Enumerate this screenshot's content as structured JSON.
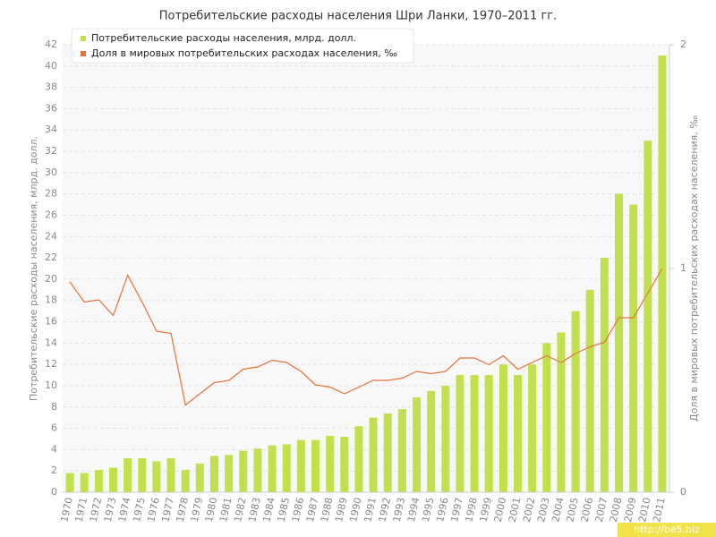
{
  "chart_data": {
    "type": "bar",
    "title": "Потребительские расходы населения Шри Ланки, 1970–2011 гг.",
    "y_label": "Потребительские расходы населения, млрд. долл.",
    "y2_label": "Доля в мировых потребительских расходах населения, ‰",
    "watermark": "http://be5.biz",
    "categories": [
      "1970",
      "1971",
      "1972",
      "1973",
      "1974",
      "1975",
      "1976",
      "1977",
      "1978",
      "1979",
      "1980",
      "1981",
      "1982",
      "1983",
      "1984",
      "1985",
      "1986",
      "1987",
      "1988",
      "1989",
      "1990",
      "1991",
      "1992",
      "1993",
      "1994",
      "1995",
      "1996",
      "1997",
      "1998",
      "1999",
      "2000",
      "2001",
      "2002",
      "2003",
      "2004",
      "2005",
      "2006",
      "2007",
      "2008",
      "2009",
      "2010",
      "2011"
    ],
    "series": [
      {
        "name": "Потребительские расходы населения, млрд. долл.",
        "type": "bar",
        "color": "#c2e04c",
        "values": [
          1.8,
          1.8,
          2.1,
          2.3,
          3.2,
          3.2,
          2.9,
          3.2,
          2.1,
          2.7,
          3.4,
          3.5,
          3.9,
          4.1,
          4.4,
          4.5,
          4.9,
          4.9,
          5.3,
          5.2,
          6.2,
          7.0,
          7.4,
          7.8,
          8.9,
          9.5,
          10.0,
          11.0,
          11.0,
          11.0,
          12.0,
          11.0,
          12.0,
          14.0,
          15.0,
          17.0,
          19.0,
          22.0,
          28.0,
          27.0,
          33.0,
          41.0
        ]
      },
      {
        "name": "Доля в мировых потребительских расходах населения, ‰",
        "type": "line",
        "axis": "y2",
        "color": "#e0733a",
        "values": [
          0.94,
          0.85,
          0.86,
          0.79,
          0.97,
          0.85,
          0.72,
          0.71,
          0.39,
          0.44,
          0.49,
          0.5,
          0.55,
          0.56,
          0.59,
          0.58,
          0.54,
          0.48,
          0.47,
          0.44,
          0.47,
          0.5,
          0.5,
          0.51,
          0.54,
          0.53,
          0.54,
          0.6,
          0.6,
          0.57,
          0.61,
          0.55,
          0.58,
          0.61,
          0.58,
          0.62,
          0.65,
          0.67,
          0.78,
          0.78,
          0.89,
          1.0
        ]
      }
    ],
    "ylim": [
      0,
      42
    ],
    "yticks": [
      0,
      2,
      4,
      6,
      8,
      10,
      12,
      14,
      16,
      18,
      20,
      22,
      24,
      26,
      28,
      30,
      32,
      34,
      36,
      38,
      40,
      42
    ],
    "y2lim": [
      0,
      2
    ],
    "y2ticks": [
      0,
      1,
      2
    ],
    "grid": true
  }
}
